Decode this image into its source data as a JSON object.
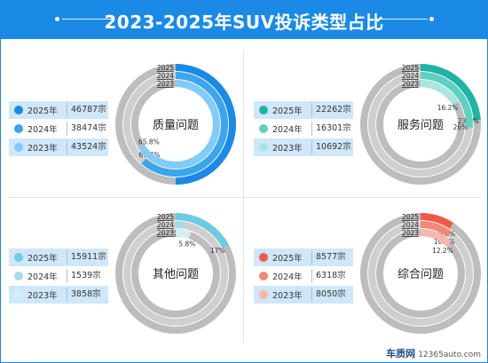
{
  "title": "2023-2025年SUV投诉类型占比",
  "watermark": {
    "logo": "车质网",
    "url": "12365auto.com"
  },
  "chart_data": [
    {
      "type": "donut",
      "title": "质量问题",
      "colors": [
        "#1a8ae6",
        "#3aa6ee",
        "#80ccf8"
      ],
      "legend": [
        {
          "year": "2025年",
          "count": "46787宗"
        },
        {
          "year": "2024年",
          "count": "38474宗"
        },
        {
          "year": "2023年",
          "count": "43524宗"
        }
      ],
      "series": [
        {
          "name": "2025",
          "value": 50,
          "label": "50%"
        },
        {
          "name": "2024",
          "value": 61.4,
          "label": "61.4%"
        },
        {
          "name": "2023",
          "value": 65.8,
          "label": "65.8%"
        }
      ]
    },
    {
      "type": "donut",
      "title": "服务问题",
      "colors": [
        "#1fb5a4",
        "#5fd0c2",
        "#a9e6de"
      ],
      "legend": [
        {
          "year": "2025年",
          "count": "22262宗"
        },
        {
          "year": "2024年",
          "count": "16301宗"
        },
        {
          "year": "2023年",
          "count": "10692宗"
        }
      ],
      "series": [
        {
          "name": "2025",
          "value": 23.8,
          "label": "23.8%"
        },
        {
          "name": "2024",
          "value": 26,
          "label": "26%"
        },
        {
          "name": "2023",
          "value": 16.2,
          "label": "16.2%"
        }
      ]
    },
    {
      "type": "donut",
      "title": "其他问题",
      "colors": [
        "#6ccae2",
        "#a3dded",
        "#d3eef6"
      ],
      "legend": [
        {
          "year": "2025年",
          "count": "15911宗"
        },
        {
          "year": "2024年",
          "count": "1539宗"
        },
        {
          "year": "2023年",
          "count": "3858宗"
        }
      ],
      "series": [
        {
          "name": "2025",
          "value": 17,
          "label": "17%"
        },
        {
          "name": "2024",
          "value": 2.5,
          "label": "2.5%"
        },
        {
          "name": "2023",
          "value": 5.8,
          "label": "5.8%"
        }
      ]
    },
    {
      "type": "donut",
      "title": "综合问题",
      "colors": [
        "#f05a4a",
        "#f58678",
        "#f9b6ad"
      ],
      "legend": [
        {
          "year": "2025年",
          "count": "8577宗"
        },
        {
          "year": "2024年",
          "count": "6318宗"
        },
        {
          "year": "2023年",
          "count": "8050宗"
        }
      ],
      "series": [
        {
          "name": "2025",
          "value": 9.2,
          "label": "9.2%"
        },
        {
          "name": "2024",
          "value": 10.1,
          "label": "10.1%"
        },
        {
          "name": "2023",
          "value": 12.2,
          "label": "12.2%"
        }
      ]
    }
  ]
}
